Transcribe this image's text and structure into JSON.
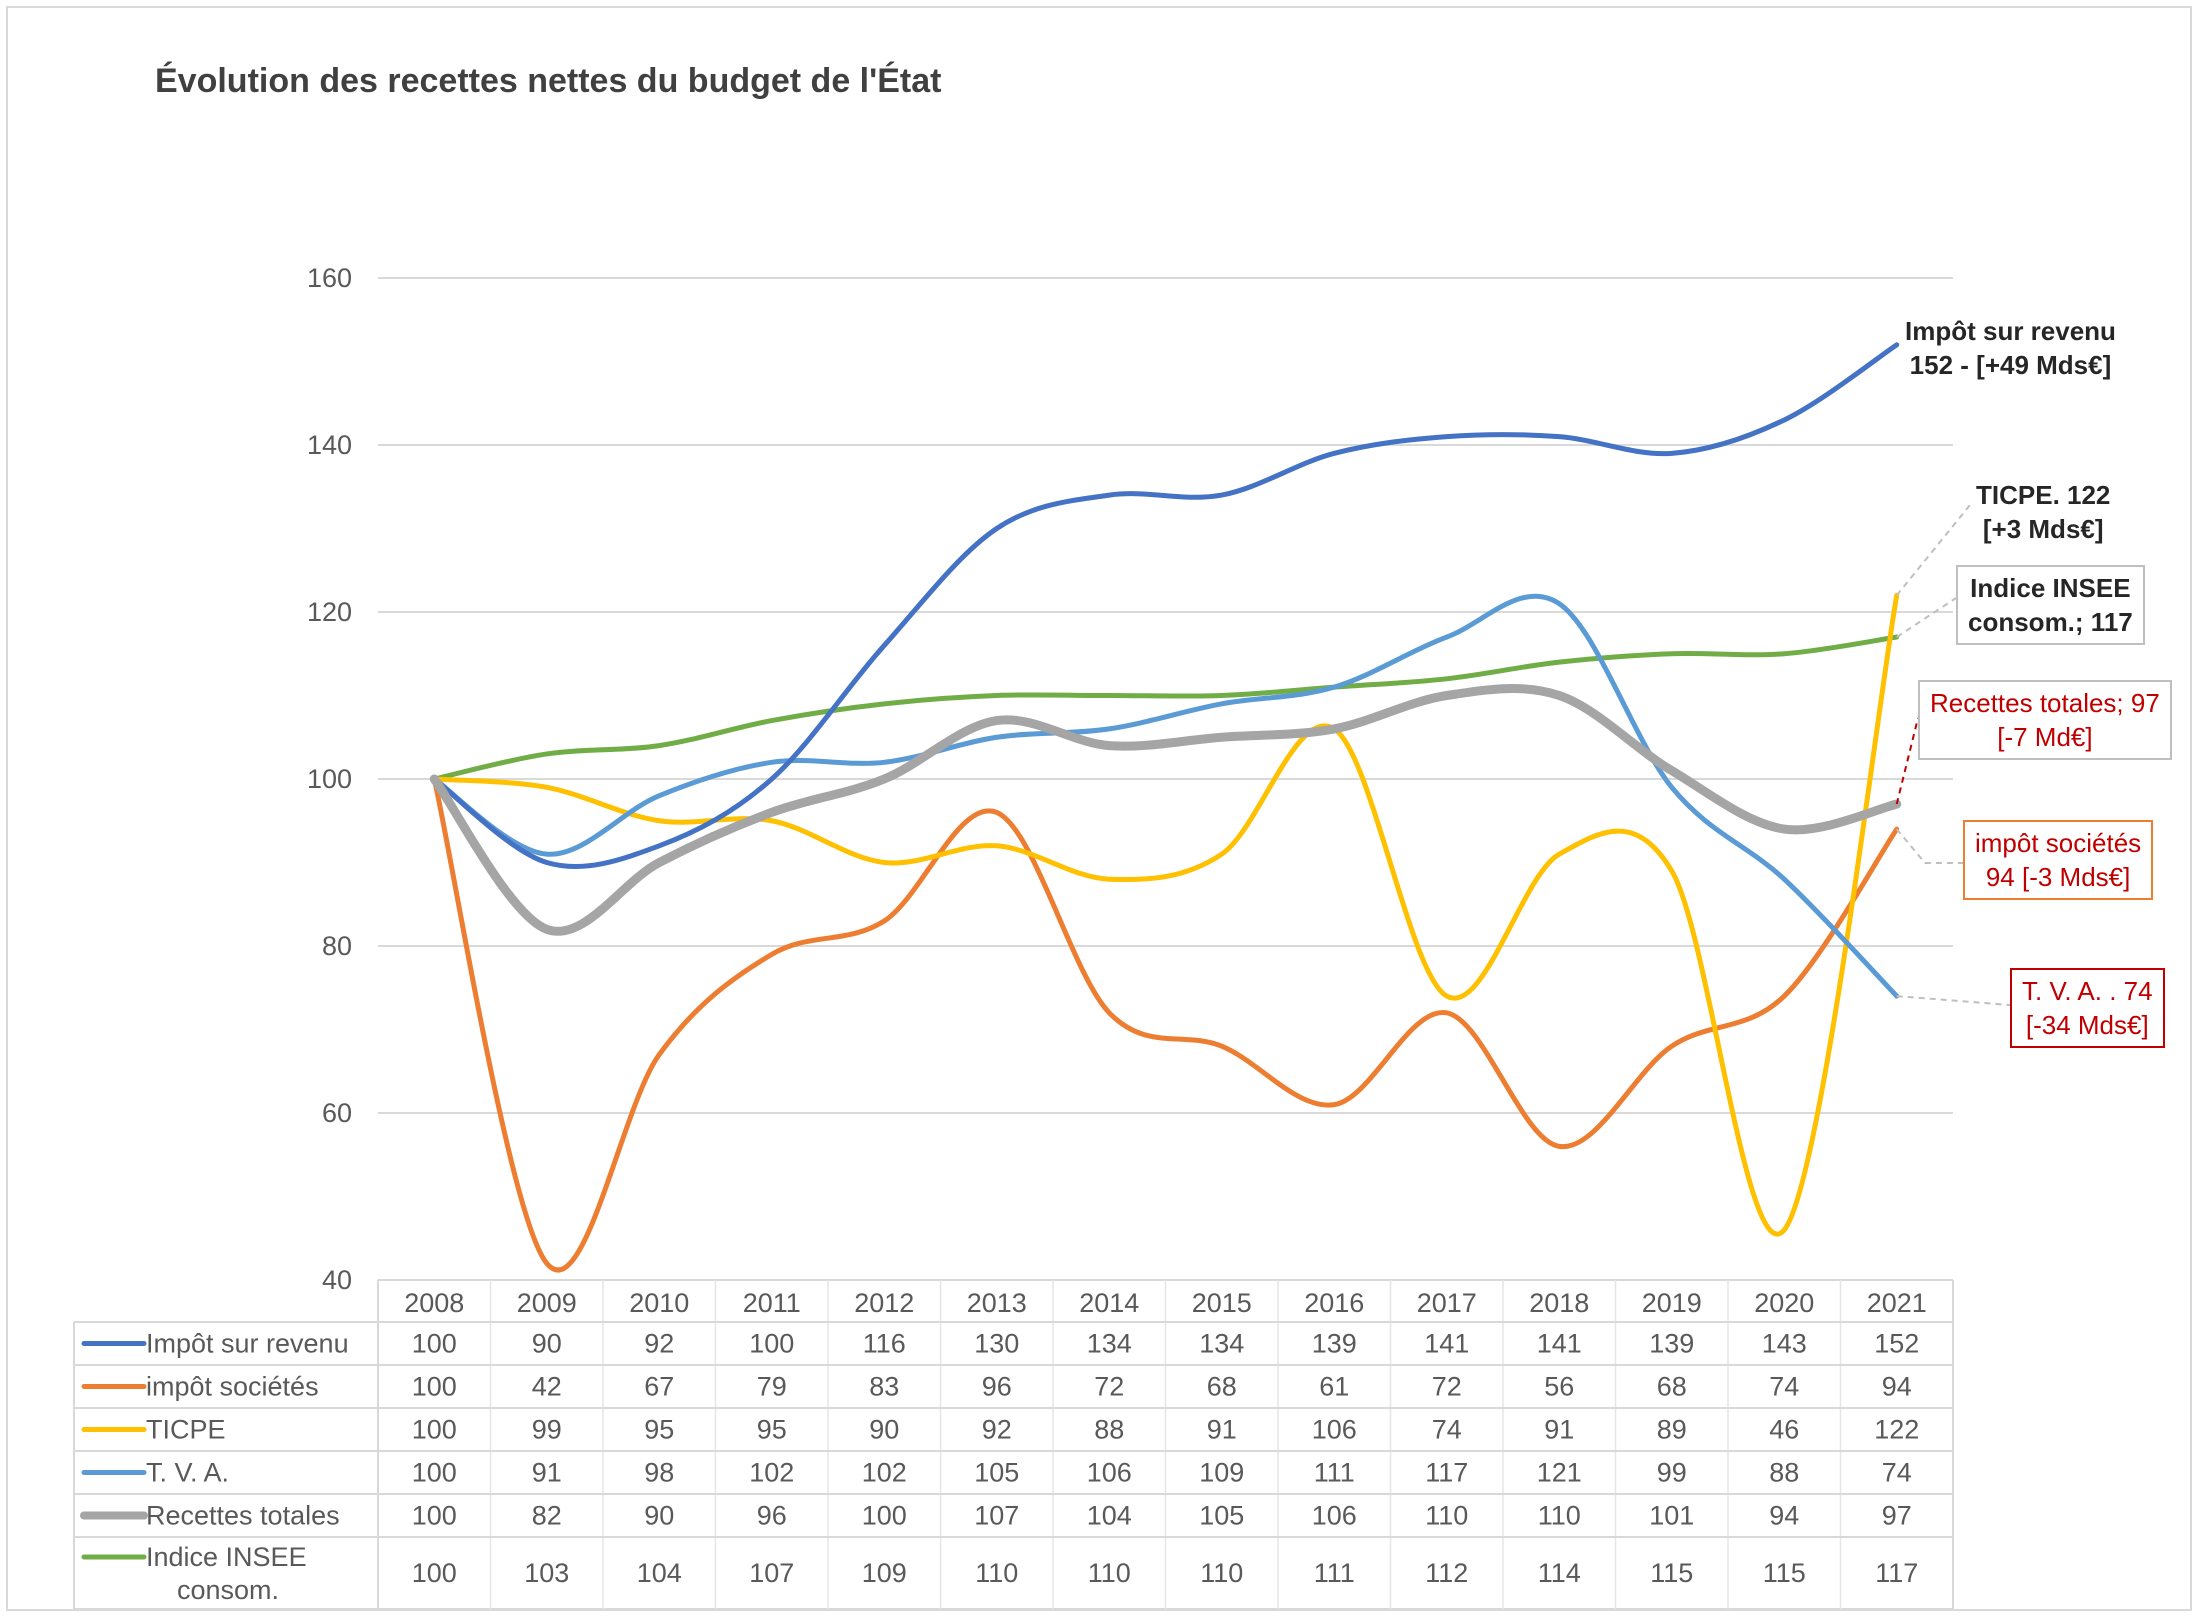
{
  "title": "Évolution des recettes nettes du budget de l'État",
  "colors": {
    "impot_revenu": "#4472c4",
    "impot_societes": "#ed7d31",
    "ticpe": "#ffc000",
    "tva": "#5b9bd5",
    "recettes_totales": "#a5a5a5",
    "insee": "#70ad47",
    "annotation_red": "#c00000",
    "annotation_dark": "#262626"
  },
  "annotations": {
    "impot_revenu": {
      "line1": "Impôt sur revenu",
      "line2": "152 - [+49 Mds€]"
    },
    "ticpe": {
      "line1": "TICPE. 122",
      "line2": "[+3 Mds€]"
    },
    "insee": {
      "line1": "Indice INSEE",
      "line2": "consom.; 117"
    },
    "recettes_totales": {
      "line1": "Recettes totales; 97",
      "line2": "[-7 Md€]"
    },
    "impot_societes": {
      "line1": "impôt sociétés",
      "line2": "94 [-3 Mds€]"
    },
    "tva": {
      "line1": "T. V. A. . 74",
      "line2": "[-34 Mds€]"
    }
  },
  "chart_data": {
    "type": "line",
    "title": "Évolution des recettes nettes du budget de l'État",
    "xlabel": "",
    "ylabel": "",
    "ylim": [
      40,
      160
    ],
    "yticks": [
      40,
      60,
      80,
      100,
      120,
      140,
      160
    ],
    "grid": true,
    "legend": "data-table-below",
    "categories": [
      "2008",
      "2009",
      "2010",
      "2011",
      "2012",
      "2013",
      "2014",
      "2015",
      "2016",
      "2017",
      "2018",
      "2019",
      "2020",
      "2021"
    ],
    "series": [
      {
        "key": "impot_revenu",
        "name": "Impôt sur revenu",
        "values": [
          100,
          90,
          92,
          100,
          116,
          130,
          134,
          134,
          139,
          141,
          141,
          139,
          143,
          152
        ]
      },
      {
        "key": "impot_societes",
        "name": "impôt sociétés",
        "values": [
          100,
          42,
          67,
          79,
          83,
          96,
          72,
          68,
          61,
          72,
          56,
          68,
          74,
          94
        ]
      },
      {
        "key": "ticpe",
        "name": "TICPE",
        "values": [
          100,
          99,
          95,
          95,
          90,
          92,
          88,
          91,
          106,
          74,
          91,
          89,
          46,
          122
        ]
      },
      {
        "key": "tva",
        "name": "T. V. A.",
        "values": [
          100,
          91,
          98,
          102,
          102,
          105,
          106,
          109,
          111,
          117,
          121,
          99,
          88,
          74
        ]
      },
      {
        "key": "recettes_totales",
        "name": "Recettes totales",
        "values": [
          100,
          82,
          90,
          96,
          100,
          107,
          104,
          105,
          106,
          110,
          110,
          101,
          94,
          97
        ]
      },
      {
        "key": "insee",
        "name": "Indice INSEE consom.",
        "name_lines": [
          "Indice INSEE",
          "consom."
        ],
        "values": [
          100,
          103,
          104,
          107,
          109,
          110,
          110,
          110,
          111,
          112,
          114,
          115,
          115,
          117
        ]
      }
    ]
  }
}
